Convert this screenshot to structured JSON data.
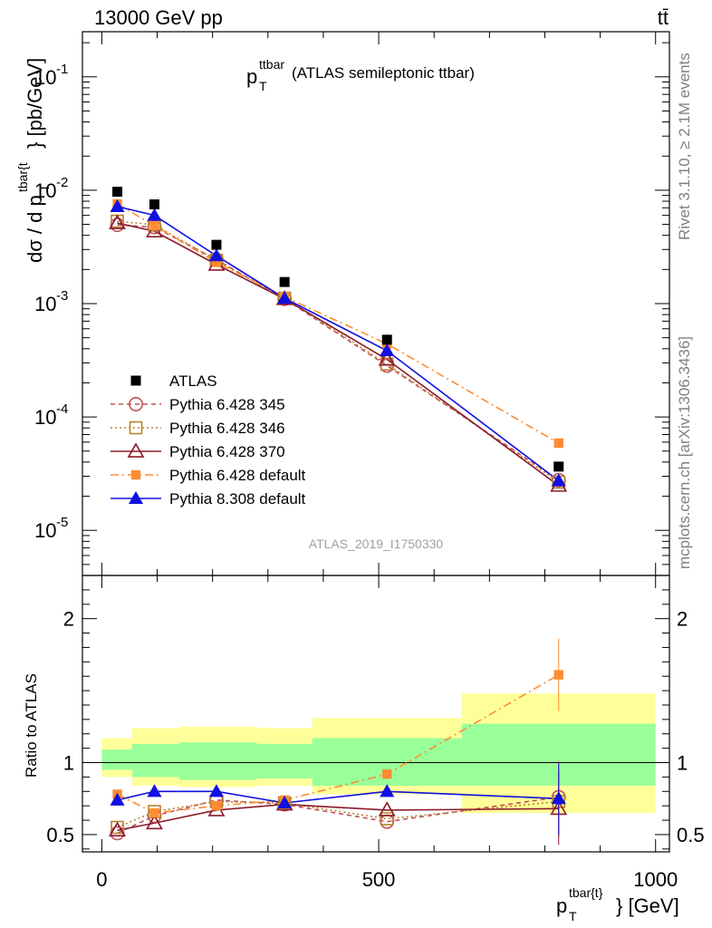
{
  "header": {
    "energy": "13000 GeV pp",
    "process": "tt̄"
  },
  "side_labels": {
    "rivet": "Rivet 3.1.10, ≥ 2.1M events",
    "mcplots": "mcplots.cern.ch [arXiv:1306.3436]"
  },
  "chart_data": {
    "type": "scatter",
    "title": {
      "main": "p",
      "sub": "T",
      "sup": "ttbar",
      "rest": " (ATLAS semileptonic ttbar)"
    },
    "watermark": "ATLAS_2019_I1750330",
    "xlabel": {
      "main": "p",
      "sub": "T",
      "sup": "tbar{t}",
      "rest": "} [GeV]"
    },
    "ylabel_top": {
      "pre": "dσ / d p",
      "sub": "T",
      "sup": "tbar{t",
      "rest": "} [pb/GeV]"
    },
    "ylabel_ratio": "Ratio to ATLAS",
    "xlim": [
      -35,
      1025
    ],
    "ylim_top": [
      4e-06,
      0.25
    ],
    "yscale_top": "log",
    "ylim_ratio": [
      0.38,
      2.3
    ],
    "x_ticks": [
      0,
      500,
      1000
    ],
    "x_tick_labels": [
      "0",
      "500",
      "1000"
    ],
    "ratio_ticks": [
      0.5,
      1,
      2
    ],
    "ratio_tick_labels": [
      "0.5",
      "1",
      "2"
    ],
    "top_tick_labels": [
      {
        "exp": "-1",
        "value": 0.1
      },
      {
        "exp": "-2",
        "value": 0.01
      },
      {
        "exp": "-3",
        "value": 0.001
      },
      {
        "exp": "-4",
        "value": 0.0001
      },
      {
        "exp": "-5",
        "value": 1e-05
      }
    ],
    "bins": [
      {
        "lo": 0,
        "hi": 55,
        "x": 28
      },
      {
        "lo": 55,
        "hi": 140,
        "x": 95
      },
      {
        "lo": 140,
        "hi": 280,
        "x": 207
      },
      {
        "lo": 280,
        "hi": 380,
        "x": 330
      },
      {
        "lo": 380,
        "hi": 650,
        "x": 515
      },
      {
        "lo": 650,
        "hi": 1000,
        "x": 825
      }
    ],
    "data": {
      "name": "ATLAS",
      "values": [
        0.0097,
        0.0075,
        0.0033,
        0.00155,
        0.00048,
        3.65e-05
      ],
      "band_inner": [
        [
          0.95,
          1.09
        ],
        [
          0.9,
          1.13
        ],
        [
          0.88,
          1.14
        ],
        [
          0.89,
          1.13
        ],
        [
          0.84,
          1.17
        ],
        [
          0.84,
          1.27
        ]
      ],
      "band_outer": [
        [
          0.9,
          1.17
        ],
        [
          0.84,
          1.24
        ],
        [
          0.83,
          1.25
        ],
        [
          0.84,
          1.24
        ],
        [
          0.78,
          1.31
        ],
        [
          0.65,
          1.48
        ]
      ]
    },
    "series": [
      {
        "name": "Pythia 6.428 345",
        "color": "#c0505a",
        "marker": "circle-open",
        "dash": "5,4",
        "ratio": [
          0.51,
          0.63,
          0.74,
          0.71,
          0.59,
          0.76
        ]
      },
      {
        "name": "Pythia 6.428 346",
        "color": "#b8822e",
        "marker": "square-open",
        "dash": "2,3",
        "ratio": [
          0.55,
          0.66,
          0.73,
          0.72,
          0.61,
          0.73
        ]
      },
      {
        "name": "Pythia 6.428 370",
        "color": "#8a1a2a",
        "marker": "triangle-open",
        "dash": "",
        "ratio": [
          0.53,
          0.58,
          0.67,
          0.71,
          0.67,
          0.68
        ]
      },
      {
        "name": "Pythia 6.428 default",
        "color": "#ff8c33",
        "marker": "square-filled",
        "dash": "9,4,2,4",
        "ratio": [
          0.78,
          0.65,
          0.7,
          0.74,
          0.92,
          1.61
        ]
      },
      {
        "name": "Pythia 8.308 default",
        "color": "#1010e0",
        "marker": "triangle-filled",
        "dash": "",
        "ratio": [
          0.74,
          0.8,
          0.8,
          0.72,
          0.8,
          0.75
        ]
      }
    ],
    "legend_position": "lower-left",
    "grid": false
  }
}
